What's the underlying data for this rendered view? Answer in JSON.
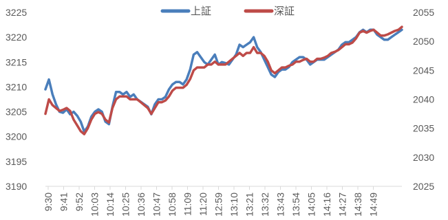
{
  "chart_data": {
    "type": "line",
    "title": "",
    "xlabel": "",
    "ylabel": "",
    "legend": "top-center",
    "grid": false,
    "x_tick_labels": [
      "9:30",
      "9:41",
      "9:52",
      "10:03",
      "10:14",
      "10:25",
      "10:36",
      "10:47",
      "10:58",
      "11:09",
      "11:20",
      "12:59",
      "13:10",
      "13:21",
      "13:32",
      "13:43",
      "13:54",
      "14:05",
      "14:16",
      "14:27",
      "14:38",
      "14:49"
    ],
    "left_axis": {
      "min": 3190,
      "max": 3225,
      "ticks": [
        3190,
        3195,
        3200,
        3205,
        3210,
        3215,
        3220,
        3225
      ]
    },
    "right_axis": {
      "min": 2025,
      "max": 2055,
      "ticks": [
        2025,
        2030,
        2035,
        2040,
        2045,
        2050,
        2055
      ]
    },
    "series": [
      {
        "name": "上証",
        "axis": "left",
        "color": "#4A7EBB",
        "values": [
          3209.5,
          3211.5,
          3208.5,
          3206.5,
          3205.0,
          3204.8,
          3205.5,
          3204.5,
          3205.0,
          3204.2,
          3203.0,
          3201.0,
          3202.0,
          3204.0,
          3205.0,
          3205.5,
          3205.0,
          3203.0,
          3202.5,
          3206.0,
          3209.0,
          3209.0,
          3208.5,
          3209.0,
          3208.0,
          3208.5,
          3207.5,
          3207.0,
          3206.5,
          3206.0,
          3204.5,
          3206.5,
          3207.5,
          3207.5,
          3208.0,
          3209.5,
          3210.5,
          3211.0,
          3211.0,
          3210.5,
          3211.5,
          3213.5,
          3216.5,
          3217.0,
          3216.0,
          3215.0,
          3214.5,
          3215.5,
          3216.5,
          3214.5,
          3215.0,
          3214.8,
          3214.5,
          3215.5,
          3216.5,
          3218.5,
          3218.0,
          3218.5,
          3219.0,
          3220.0,
          3218.0,
          3217.0,
          3215.5,
          3214.0,
          3212.5,
          3212.0,
          3213.0,
          3213.5,
          3213.5,
          3214.0,
          3215.0,
          3215.5,
          3216.0,
          3216.0,
          3215.5,
          3214.5,
          3215.0,
          3215.5,
          3215.5,
          3215.5,
          3216.0,
          3216.5,
          3217.0,
          3217.5,
          3218.5,
          3219.0,
          3219.0,
          3219.5,
          3220.0,
          3221.0,
          3221.5,
          3221.0,
          3221.5,
          3221.5,
          3220.5,
          3220.0,
          3219.5,
          3219.5,
          3220.0,
          3220.5,
          3221.0,
          3221.5
        ]
      },
      {
        "name": "深証",
        "axis": "right",
        "color": "#BE4B48",
        "values": [
          2037.5,
          2040.0,
          2039.0,
          2038.5,
          2038.0,
          2038.2,
          2038.5,
          2038.0,
          2036.5,
          2035.5,
          2034.5,
          2034.0,
          2035.0,
          2036.5,
          2037.5,
          2037.8,
          2037.5,
          2036.5,
          2036.0,
          2038.5,
          2040.0,
          2040.5,
          2040.5,
          2040.5,
          2040.0,
          2040.0,
          2040.0,
          2039.5,
          2039.0,
          2038.5,
          2037.5,
          2038.5,
          2039.5,
          2039.5,
          2039.8,
          2040.5,
          2041.5,
          2042.0,
          2042.0,
          2042.0,
          2042.5,
          2043.5,
          2045.0,
          2045.5,
          2045.5,
          2045.5,
          2046.0,
          2046.0,
          2046.5,
          2046.0,
          2046.0,
          2046.0,
          2046.5,
          2047.0,
          2047.5,
          2048.0,
          2047.5,
          2048.0,
          2048.0,
          2049.0,
          2048.0,
          2048.0,
          2047.5,
          2046.5,
          2045.0,
          2044.5,
          2045.0,
          2045.5,
          2045.5,
          2045.8,
          2046.0,
          2046.5,
          2046.5,
          2046.8,
          2047.0,
          2046.5,
          2046.5,
          2047.0,
          2047.0,
          2047.2,
          2047.5,
          2048.0,
          2048.2,
          2048.5,
          2049.0,
          2049.5,
          2049.5,
          2049.8,
          2050.5,
          2051.5,
          2051.8,
          2051.5,
          2051.8,
          2052.0,
          2051.5,
          2051.0,
          2051.0,
          2051.2,
          2051.5,
          2051.8,
          2052.0,
          2052.5
        ]
      }
    ]
  }
}
